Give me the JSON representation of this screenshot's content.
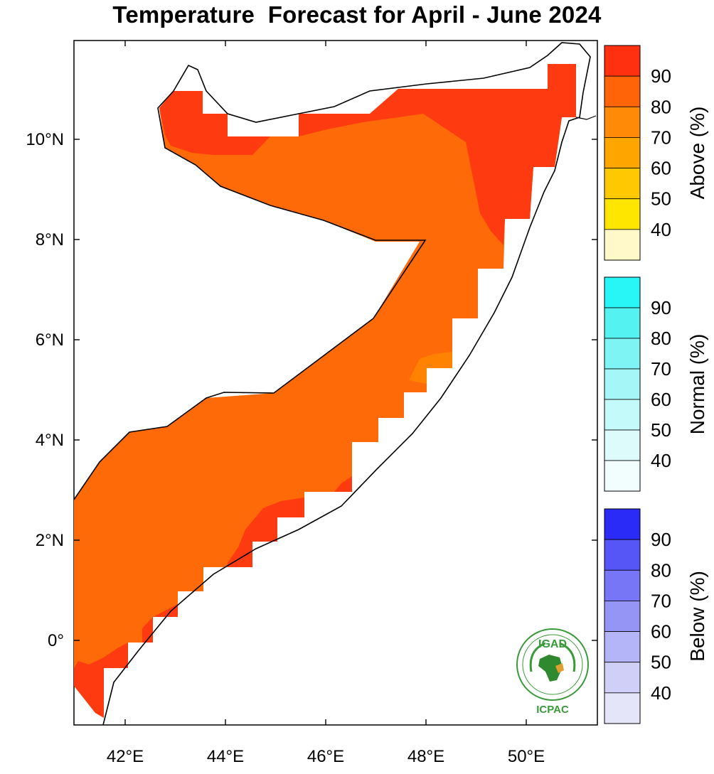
{
  "title": "Temperature  Forecast for April - June 2024",
  "map": {
    "lat_labels": [
      {
        "value": 10,
        "text": "10°N"
      },
      {
        "value": 8,
        "text": "8°N"
      },
      {
        "value": 6,
        "text": "6°N"
      },
      {
        "value": 4,
        "text": "4°N"
      },
      {
        "value": 2,
        "text": "2°N"
      },
      {
        "value": 0,
        "text": "0°"
      }
    ],
    "lon_labels": [
      {
        "value": 42,
        "text": "42°E"
      },
      {
        "value": 44,
        "text": "44°E"
      },
      {
        "value": 46,
        "text": "46°E"
      },
      {
        "value": 48,
        "text": "48°E"
      },
      {
        "value": 50,
        "text": "50°E"
      }
    ],
    "fill_colors": {
      "above_90": "#fe3a10",
      "above_80": "#ff6a08",
      "above_70": "#ff8200",
      "dominant": "#ff6a08"
    }
  },
  "colorbars": [
    {
      "id": "above",
      "title": "Above (%)",
      "ticks": [
        "90",
        "80",
        "70",
        "60",
        "50",
        "40"
      ],
      "colors": [
        "#fe3010",
        "#ff6408",
        "#ff8a08",
        "#ffa500",
        "#ffc800",
        "#ffe600",
        "#fff8c8"
      ]
    },
    {
      "id": "normal",
      "title": "Normal (%)",
      "ticks": [
        "90",
        "80",
        "70",
        "60",
        "50",
        "40"
      ],
      "colors": [
        "#28f5f5",
        "#55f2f2",
        "#7ef4f4",
        "#a5f7f7",
        "#c5fafa",
        "#ddfbfb",
        "#f2fdfd"
      ]
    },
    {
      "id": "below",
      "title": "Below (%)",
      "ticks": [
        "90",
        "80",
        "70",
        "60",
        "50",
        "40"
      ],
      "colors": [
        "#2b2bf8",
        "#5656f6",
        "#7676f6",
        "#9595f6",
        "#b4b4f8",
        "#cfcff8",
        "#e5e5fa"
      ]
    }
  ],
  "logo": {
    "top_text": "IGAD",
    "bottom_text": "ICPAC"
  }
}
